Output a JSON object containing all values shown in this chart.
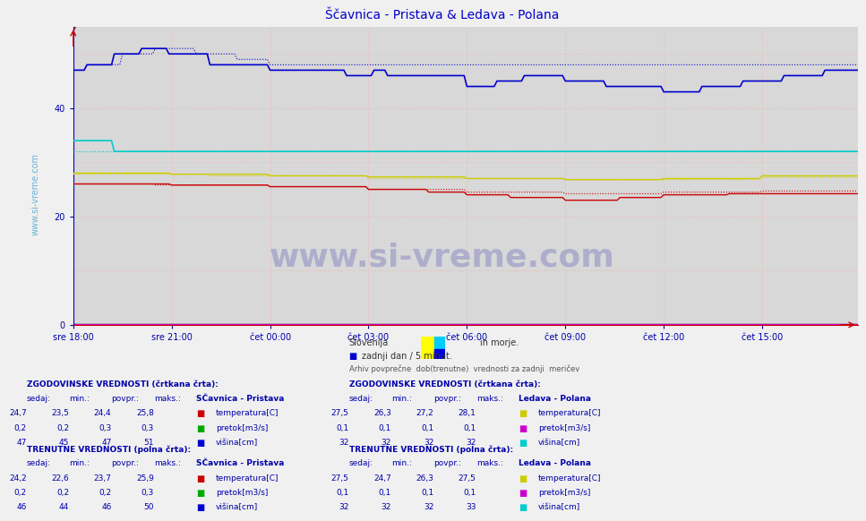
{
  "title": "Ščavnica - Pristava & Ledava - Polana",
  "title_color": "#0000cc",
  "bg_color": "#f0f0f0",
  "plot_bg_color": "#d8d8d8",
  "grid_color": "#ff9999",
  "xlim": [
    0,
    287
  ],
  "ylim": [
    0,
    55
  ],
  "yticks": [
    0,
    20,
    40
  ],
  "xtick_labels": [
    "sre 18:00",
    "sre 21:00",
    "čet 00:00",
    "čet 03:00",
    "čet 06:00",
    "čet 09:00",
    "čet 12:00",
    "čet 15:00"
  ],
  "xtick_positions": [
    0,
    36,
    72,
    108,
    144,
    180,
    216,
    252
  ],
  "n_points": 288,
  "colors": {
    "scavnica_temp": "#cc0000",
    "scavnica_pretok": "#00aa00",
    "scavnica_visina": "#0000cc",
    "ledava_temp": "#cccc00",
    "ledava_pretok": "#cc00cc",
    "ledava_visina": "#00cccc"
  },
  "legend_text1": "Slovenija",
  "legend_text1b": "in morje.",
  "legend_text2": "zadnji dan / 5 minut.",
  "subtitle": "Arhiv povprečne  dob(trenutne)  vrednosti za zadnji  meričev",
  "watermark": "www.si-vreme.com",
  "table_left": {
    "hist_title": "ZGODOVINSKE VREDNOSTI (črtkana črta):",
    "hist_headers": [
      "sedaj:",
      "min.:",
      "povpr.:",
      "maks.:"
    ],
    "hist_station": "SČavnica - Pristava",
    "hist_rows": [
      [
        "24,7",
        "23,5",
        "24,4",
        "25,8"
      ],
      [
        "0,2",
        "0,2",
        "0,3",
        "0,3"
      ],
      [
        "47",
        "45",
        "47",
        "51"
      ]
    ],
    "curr_title": "TRENUTNE VREDNOSTI (polna črta):",
    "curr_headers": [
      "sedaj:",
      "min.:",
      "povpr.:",
      "maks.:"
    ],
    "curr_station": "SČavnica - Pristava",
    "curr_rows": [
      [
        "24,2",
        "22,6",
        "23,7",
        "25,9"
      ],
      [
        "0,2",
        "0,2",
        "0,2",
        "0,3"
      ],
      [
        "46",
        "44",
        "46",
        "50"
      ]
    ],
    "label_names": [
      "temperatura[C]",
      "pretok[m3/s]",
      "višina[cm]"
    ],
    "label_colors_keys": [
      "scavnica_temp",
      "scavnica_pretok",
      "scavnica_visina"
    ]
  },
  "table_right": {
    "hist_title": "ZGODOVINSKE VREDNOSTI (črtkana črta):",
    "hist_station": "Ledava - Polana",
    "hist_rows": [
      [
        "27,5",
        "26,3",
        "27,2",
        "28,1"
      ],
      [
        "0,1",
        "0,1",
        "0,1",
        "0,1"
      ],
      [
        "32",
        "32",
        "32",
        "32"
      ]
    ],
    "curr_title": "TRENUTNE VREDNOSTI (polna črta):",
    "curr_station": "Ledava - Polana",
    "curr_rows": [
      [
        "27,5",
        "24,7",
        "26,3",
        "27,5"
      ],
      [
        "0,1",
        "0,1",
        "0,1",
        "0,1"
      ],
      [
        "32",
        "32",
        "32",
        "33"
      ]
    ],
    "label_names": [
      "temperatura[C]",
      "pretok[m3/s]",
      "višina[cm]"
    ],
    "label_colors_keys": [
      "ledava_temp",
      "ledava_pretok",
      "ledava_visina"
    ]
  }
}
